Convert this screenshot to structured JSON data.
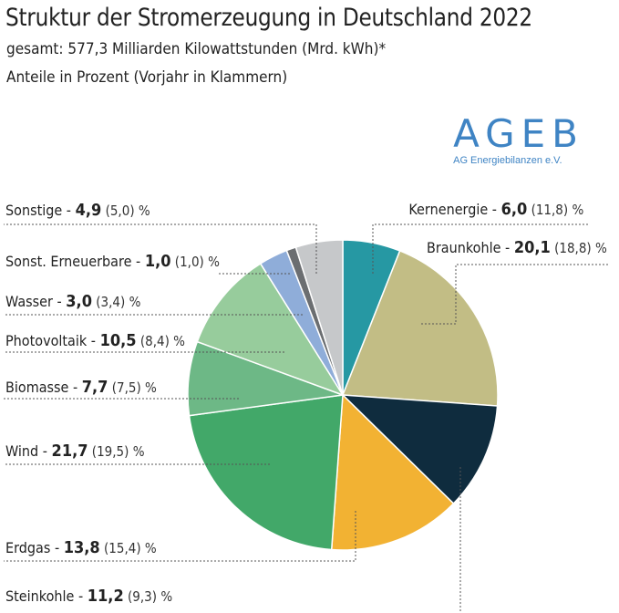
{
  "header": {
    "title": "Struktur der Stromerzeugung in Deutschland 2022",
    "subtitle1": "gesamt: 577,3 Milliarden Kilowattstunden (Mrd. kWh)*",
    "subtitle2": "Anteile in Prozent (Vorjahr in Klammern)"
  },
  "logo": {
    "name": "AGEB",
    "subtitle": "AG Energiebilanzen e.V."
  },
  "chart_data": {
    "type": "pie",
    "title": "Struktur der Stromerzeugung in Deutschland 2022",
    "unit": "%",
    "total": "577,3 Mrd. kWh",
    "start": "12 o'clock, clockwise",
    "slices": [
      {
        "label": "Kernenergie",
        "value": 6.0,
        "value_text": "6,0",
        "prev_text": "(11,8)",
        "unit": "%",
        "color": "#2698a3"
      },
      {
        "label": "Braunkohle",
        "value": 20.1,
        "value_text": "20,1",
        "prev_text": "(18,8)",
        "unit": "%",
        "color": "#c2bd85"
      },
      {
        "label": "Steinkohle",
        "value": 11.2,
        "value_text": "11,2",
        "prev_text": "(9,3)",
        "unit": "%",
        "color": "#0f2c3e"
      },
      {
        "label": "Erdgas",
        "value": 13.8,
        "value_text": "13,8",
        "prev_text": "(15,4)",
        "unit": "%",
        "color": "#f2b233"
      },
      {
        "label": "Wind",
        "value": 21.7,
        "value_text": "21,7",
        "prev_text": "(19,5)",
        "unit": "%",
        "color": "#42a869"
      },
      {
        "label": "Biomasse",
        "value": 7.7,
        "value_text": "7,7",
        "prev_text": "(7,5)",
        "unit": "%",
        "color": "#6db886"
      },
      {
        "label": "Photovoltaik",
        "value": 10.5,
        "value_text": "10,5",
        "prev_text": "(8,4)",
        "unit": "%",
        "color": "#97cc9c"
      },
      {
        "label": "Wasser",
        "value": 3.0,
        "value_text": "3,0",
        "prev_text": "(3,4)",
        "unit": "%",
        "color": "#8fadd9"
      },
      {
        "label": "Sonst. Erneuerbare",
        "value": 1.0,
        "value_text": "1,0",
        "prev_text": "(1,0)",
        "unit": "%",
        "color": "#6b6e71"
      },
      {
        "label": "Sonstige",
        "value": 4.9,
        "value_text": "4,9",
        "prev_text": "(5,0)",
        "unit": "%",
        "color": "#c6c8ca"
      }
    ]
  }
}
